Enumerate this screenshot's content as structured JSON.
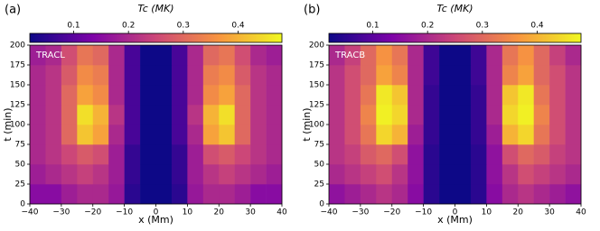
{
  "chart_data": [
    {
      "type": "heatmap",
      "panel_label": "(a)",
      "annotation": "TRACL",
      "colorbar_label": "Tc (MK)",
      "colormap": "plasma",
      "clim": [
        0.02,
        0.48
      ],
      "cticks": [
        0.1,
        0.2,
        0.3,
        0.4
      ],
      "x_label": "x (Mm)",
      "y_label": "t (min)",
      "xlim": [
        -40,
        40
      ],
      "ylim": [
        0,
        200
      ],
      "xticks": [
        {
          "value": -40,
          "label": "−40"
        },
        {
          "value": -30,
          "label": "−30"
        },
        {
          "value": -20,
          "label": "−20"
        },
        {
          "value": -10,
          "label": "−10"
        },
        0,
        10,
        20,
        30,
        40
      ],
      "yticks": [
        0,
        25,
        50,
        75,
        100,
        125,
        150,
        175,
        200
      ],
      "xbins": [
        -40,
        -35,
        -30,
        -25,
        -20,
        -15,
        -10,
        -5,
        0,
        5,
        10,
        15,
        20,
        25,
        30,
        35,
        40
      ],
      "ybins": [
        0,
        25,
        50,
        75,
        100,
        125,
        150,
        175,
        200
      ],
      "values": [
        [
          0.15,
          0.15,
          0.18,
          0.2,
          0.2,
          0.17,
          0.05,
          0.02,
          0.02,
          0.05,
          0.17,
          0.2,
          0.2,
          0.18,
          0.15,
          0.15
        ],
        [
          0.18,
          0.2,
          0.22,
          0.24,
          0.22,
          0.18,
          0.06,
          0.02,
          0.02,
          0.06,
          0.18,
          0.22,
          0.24,
          0.22,
          0.2,
          0.18
        ],
        [
          0.2,
          0.22,
          0.25,
          0.28,
          0.26,
          0.18,
          0.06,
          0.02,
          0.02,
          0.06,
          0.18,
          0.26,
          0.28,
          0.25,
          0.22,
          0.2
        ],
        [
          0.2,
          0.22,
          0.3,
          0.42,
          0.38,
          0.2,
          0.08,
          0.02,
          0.02,
          0.08,
          0.2,
          0.38,
          0.42,
          0.3,
          0.22,
          0.2
        ],
        [
          0.2,
          0.22,
          0.3,
          0.45,
          0.4,
          0.22,
          0.08,
          0.02,
          0.02,
          0.08,
          0.22,
          0.4,
          0.45,
          0.3,
          0.22,
          0.2
        ],
        [
          0.2,
          0.22,
          0.3,
          0.38,
          0.35,
          0.2,
          0.08,
          0.02,
          0.02,
          0.08,
          0.2,
          0.35,
          0.38,
          0.3,
          0.22,
          0.2
        ],
        [
          0.2,
          0.22,
          0.28,
          0.35,
          0.33,
          0.2,
          0.08,
          0.02,
          0.02,
          0.08,
          0.2,
          0.33,
          0.35,
          0.28,
          0.22,
          0.2
        ],
        [
          0.18,
          0.2,
          0.26,
          0.32,
          0.3,
          0.2,
          0.08,
          0.02,
          0.02,
          0.08,
          0.2,
          0.3,
          0.32,
          0.26,
          0.2,
          0.18
        ]
      ]
    },
    {
      "type": "heatmap",
      "panel_label": "(b)",
      "annotation": "TRACB",
      "colorbar_label": "Tc (MK)",
      "colormap": "plasma",
      "clim": [
        0.02,
        0.48
      ],
      "cticks": [
        0.1,
        0.2,
        0.3,
        0.4
      ],
      "x_label": "x (Mm)",
      "y_label": "t (min)",
      "xlim": [
        -40,
        40
      ],
      "ylim": [
        0,
        200
      ],
      "xticks": [
        {
          "value": -40,
          "label": "−40"
        },
        {
          "value": -30,
          "label": "−30"
        },
        {
          "value": -20,
          "label": "−20"
        },
        {
          "value": -10,
          "label": "−10"
        },
        0,
        10,
        20,
        30,
        40
      ],
      "yticks": [
        0,
        25,
        50,
        75,
        100,
        125,
        150,
        175,
        200
      ],
      "xbins": [
        -40,
        -35,
        -30,
        -25,
        -20,
        -15,
        -10,
        -5,
        0,
        5,
        10,
        15,
        20,
        25,
        30,
        35,
        40
      ],
      "ybins": [
        0,
        25,
        50,
        75,
        100,
        125,
        150,
        175,
        200
      ],
      "values": [
        [
          0.16,
          0.18,
          0.2,
          0.22,
          0.2,
          0.15,
          0.05,
          0.02,
          0.02,
          0.05,
          0.15,
          0.2,
          0.22,
          0.2,
          0.18,
          0.16
        ],
        [
          0.2,
          0.22,
          0.24,
          0.26,
          0.22,
          0.16,
          0.05,
          0.02,
          0.02,
          0.05,
          0.16,
          0.22,
          0.26,
          0.24,
          0.22,
          0.2
        ],
        [
          0.22,
          0.24,
          0.28,
          0.3,
          0.26,
          0.16,
          0.05,
          0.02,
          0.02,
          0.05,
          0.16,
          0.26,
          0.3,
          0.28,
          0.24,
          0.22
        ],
        [
          0.22,
          0.26,
          0.32,
          0.44,
          0.4,
          0.18,
          0.06,
          0.02,
          0.02,
          0.06,
          0.18,
          0.4,
          0.44,
          0.32,
          0.26,
          0.22
        ],
        [
          0.22,
          0.26,
          0.34,
          0.47,
          0.44,
          0.2,
          0.06,
          0.02,
          0.02,
          0.06,
          0.2,
          0.44,
          0.47,
          0.34,
          0.26,
          0.22
        ],
        [
          0.22,
          0.26,
          0.32,
          0.46,
          0.42,
          0.2,
          0.06,
          0.02,
          0.02,
          0.06,
          0.2,
          0.42,
          0.46,
          0.32,
          0.26,
          0.22
        ],
        [
          0.22,
          0.26,
          0.3,
          0.38,
          0.34,
          0.2,
          0.07,
          0.02,
          0.02,
          0.07,
          0.2,
          0.34,
          0.38,
          0.3,
          0.26,
          0.22
        ],
        [
          0.2,
          0.24,
          0.3,
          0.36,
          0.32,
          0.2,
          0.07,
          0.02,
          0.02,
          0.07,
          0.2,
          0.32,
          0.36,
          0.3,
          0.24,
          0.2
        ]
      ]
    }
  ]
}
